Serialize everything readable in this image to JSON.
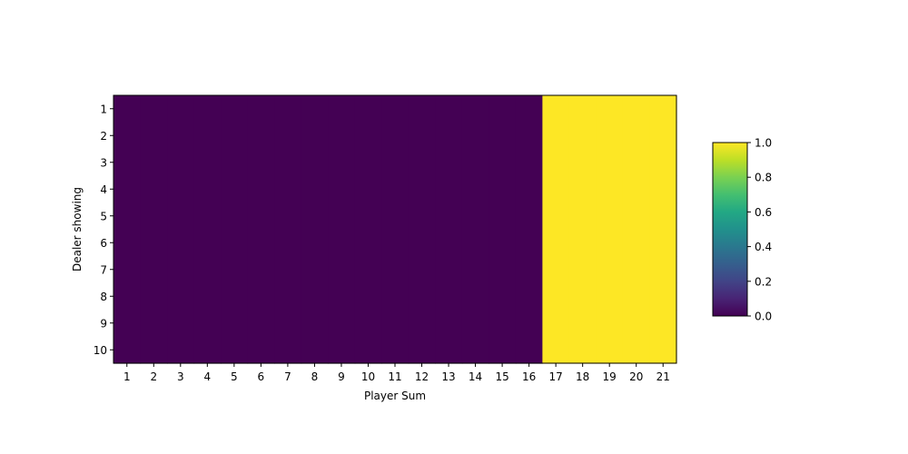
{
  "chart_data": {
    "type": "heatmap",
    "title": "",
    "xlabel": "Player Sum",
    "ylabel": "Dealer showing",
    "x_categories": [
      "1",
      "2",
      "3",
      "4",
      "5",
      "6",
      "7",
      "8",
      "9",
      "10",
      "11",
      "12",
      "13",
      "14",
      "15",
      "16",
      "17",
      "18",
      "19",
      "20",
      "21"
    ],
    "y_categories": [
      "1",
      "2",
      "3",
      "4",
      "5",
      "6",
      "7",
      "8",
      "9",
      "10"
    ],
    "values": [
      [
        0,
        0,
        0,
        0,
        0,
        0,
        0,
        0,
        0,
        0,
        0,
        0,
        0,
        0,
        0,
        0,
        1,
        1,
        1,
        1,
        1
      ],
      [
        0,
        0,
        0,
        0,
        0,
        0,
        0,
        0,
        0,
        0,
        0,
        0,
        0,
        0,
        0,
        0,
        1,
        1,
        1,
        1,
        1
      ],
      [
        0,
        0,
        0,
        0,
        0,
        0,
        0,
        0,
        0,
        0,
        0,
        0,
        0,
        0,
        0,
        0,
        1,
        1,
        1,
        1,
        1
      ],
      [
        0,
        0,
        0,
        0,
        0,
        0,
        0,
        0,
        0,
        0,
        0,
        0,
        0,
        0,
        0,
        0,
        1,
        1,
        1,
        1,
        1
      ],
      [
        0,
        0,
        0,
        0,
        0,
        0,
        0,
        0,
        0,
        0,
        0,
        0,
        0,
        0,
        0,
        0,
        1,
        1,
        1,
        1,
        1
      ],
      [
        0,
        0,
        0,
        0,
        0,
        0,
        0,
        0,
        0,
        0,
        0,
        0,
        0,
        0,
        0,
        0,
        1,
        1,
        1,
        1,
        1
      ],
      [
        0,
        0,
        0,
        0,
        0,
        0,
        0,
        0,
        0,
        0,
        0,
        0,
        0,
        0,
        0,
        0,
        1,
        1,
        1,
        1,
        1
      ],
      [
        0,
        0,
        0,
        0,
        0,
        0,
        0,
        0,
        0,
        0,
        0,
        0,
        0,
        0,
        0,
        0,
        1,
        1,
        1,
        1,
        1
      ],
      [
        0,
        0,
        0,
        0,
        0,
        0,
        0,
        0,
        0,
        0,
        0,
        0,
        0,
        0,
        0,
        0,
        1,
        1,
        1,
        1,
        1
      ],
      [
        0,
        0,
        0,
        0,
        0,
        0,
        0,
        0,
        0,
        0,
        0,
        0,
        0,
        0,
        0,
        0,
        1,
        1,
        1,
        1,
        1
      ]
    ],
    "colorscale": "viridis",
    "color_range": [
      0,
      1
    ],
    "colorbar_ticks": [
      "0.0",
      "0.2",
      "0.4",
      "0.6",
      "0.8",
      "1.0"
    ],
    "grid": false,
    "colors": {
      "low": "#440154",
      "high": "#fde725"
    }
  }
}
